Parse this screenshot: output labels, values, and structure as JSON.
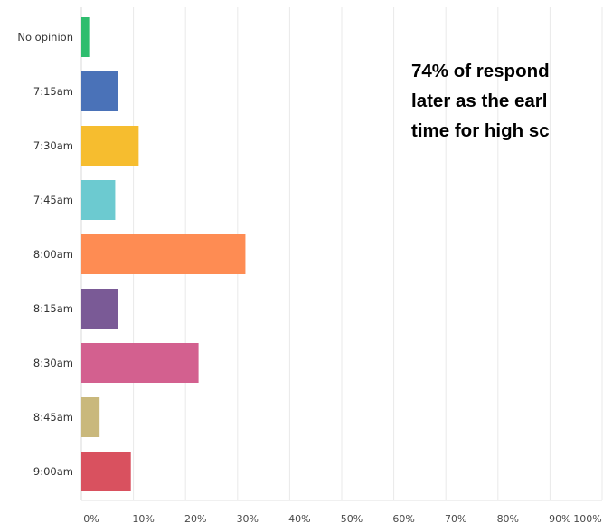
{
  "chart_data": {
    "type": "bar",
    "orientation": "horizontal",
    "categories": [
      "No opinion",
      "7:15am",
      "7:30am",
      "7:45am",
      "8:00am",
      "8:15am",
      "8:30am",
      "8:45am",
      "9:00am"
    ],
    "values": [
      1.5,
      7.0,
      11.0,
      6.5,
      31.5,
      7.0,
      22.5,
      3.5,
      9.5
    ],
    "colors": [
      "#2ebd6e",
      "#4a72b8",
      "#f6bd2f",
      "#6ccad0",
      "#fe8c53",
      "#7a5a96",
      "#d3608f",
      "#c9b87c",
      "#d9515f"
    ],
    "x_ticks": [
      "0%",
      "10%",
      "20%",
      "30%",
      "40%",
      "50%",
      "60%",
      "70%",
      "80%",
      "90%",
      "100%"
    ],
    "xlim": [
      0,
      100
    ],
    "grid": "vertical",
    "annotation": {
      "lines": [
        "74% of respond",
        "later as the earl",
        "time for high sc"
      ]
    }
  }
}
